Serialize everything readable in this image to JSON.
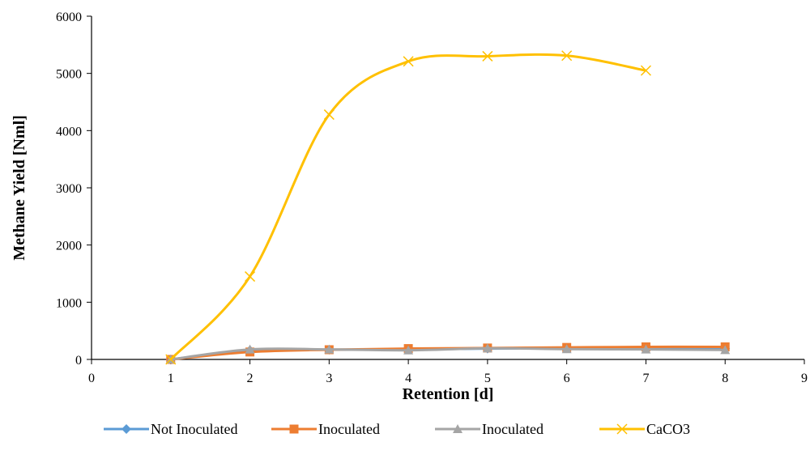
{
  "chart_data": {
    "type": "line",
    "title": "",
    "xlabel": "Retention [d]",
    "ylabel": "Methane Yield [Nml]",
    "xlim": [
      0,
      9
    ],
    "ylim": [
      0,
      6000
    ],
    "x_ticks": [
      0,
      1,
      2,
      3,
      4,
      5,
      6,
      7,
      8,
      9
    ],
    "y_ticks": [
      0,
      1000,
      2000,
      3000,
      4000,
      5000,
      6000
    ],
    "grid": false,
    "legend_position": "bottom",
    "smooth": true,
    "series": [
      {
        "name": "Not Inoculated",
        "color": "#5B9BD5",
        "marker": "diamond",
        "x": [
          1,
          2,
          3,
          4,
          5,
          6,
          7,
          8
        ],
        "y": [
          0,
          160,
          170,
          175,
          190,
          195,
          195,
          190
        ]
      },
      {
        "name": "Inoculated",
        "color": "#ED7D31",
        "marker": "square",
        "x": [
          1,
          2,
          3,
          4,
          5,
          6,
          7,
          8
        ],
        "y": [
          0,
          130,
          170,
          190,
          200,
          210,
          220,
          220
        ]
      },
      {
        "name": "Inoculated",
        "color": "#A5A5A5",
        "marker": "triangle",
        "x": [
          1,
          2,
          3,
          4,
          5,
          6,
          7,
          8
        ],
        "y": [
          0,
          175,
          175,
          160,
          195,
          180,
          175,
          165
        ]
      },
      {
        "name": "CaCO3",
        "color": "#FFC000",
        "marker": "x",
        "x": [
          1,
          2,
          3,
          4,
          5,
          6,
          7
        ],
        "y": [
          0,
          1450,
          4280,
          5210,
          5300,
          5310,
          5050
        ]
      }
    ]
  }
}
